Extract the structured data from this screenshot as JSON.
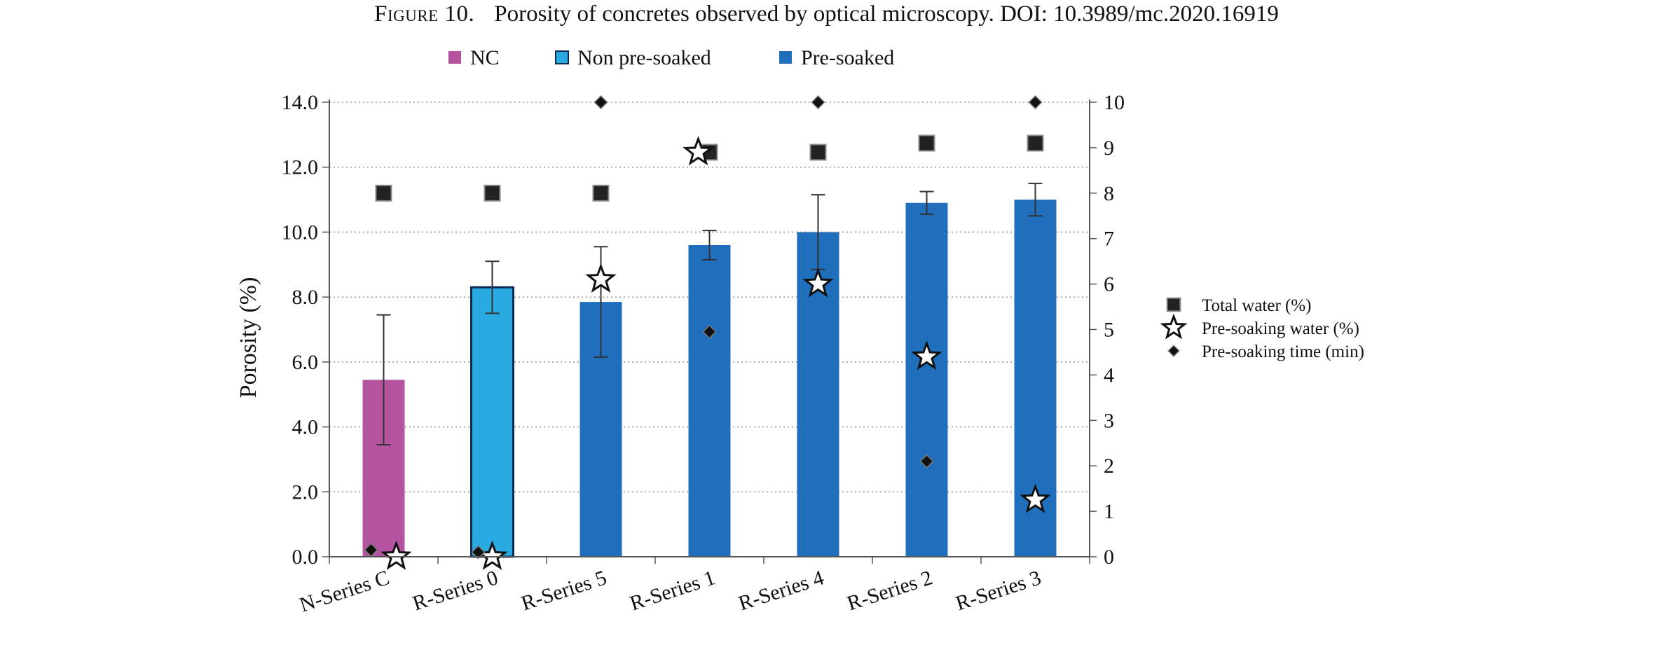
{
  "figure": {
    "number": "Figure 10.",
    "caption": "Porosity of concretes observed by optical microscopy. DOI: 10.3989/mc.2020.16919"
  },
  "chart_data": {
    "type": "bar",
    "title": "Porosity of concretes observed by optical microscopy. DOI: 10.3989/mc.2020.16919",
    "categories": [
      "N-Series C",
      "R-Series 0",
      "R-Series 5",
      "R-Series 1",
      "R-Series 4",
      "R-Series 2",
      "R-Series 3"
    ],
    "ylabel": "Porosity (%)",
    "ylim": [
      0,
      14
    ],
    "y_ticks": [
      "0.0",
      "2.0",
      "4.0",
      "6.0",
      "8.0",
      "10.0",
      "12.0",
      "14.0"
    ],
    "y2lim": [
      0,
      10
    ],
    "y2_ticks": [
      "0",
      "1",
      "2",
      "3",
      "4",
      "5",
      "6",
      "7",
      "8",
      "9",
      "10"
    ],
    "grid": "horizontal dotted",
    "bars": {
      "values": [
        5.45,
        8.3,
        7.85,
        9.6,
        10.0,
        10.9,
        11.0
      ],
      "error": [
        2.0,
        0.8,
        1.7,
        0.45,
        1.15,
        0.35,
        0.5
      ],
      "groups": [
        "NC",
        "Non pre-soaked",
        "Pre-soaked",
        "Pre-soaked",
        "Pre-soaked",
        "Pre-soaked",
        "Pre-soaked"
      ]
    },
    "bar_legend": [
      {
        "name": "NC",
        "color": "#b4539f"
      },
      {
        "name": "Non pre-soaked",
        "color": "#29abe2"
      },
      {
        "name": "Pre-soaked",
        "color": "#1f6fbd"
      }
    ],
    "series": [
      {
        "name": "Total water (%)",
        "axis": "right",
        "marker": "square",
        "values": [
          8.0,
          8.0,
          8.0,
          8.9,
          8.9,
          9.1,
          9.1
        ]
      },
      {
        "name": "Pre-soaking water (%)",
        "axis": "right",
        "marker": "star",
        "values": [
          0,
          0,
          6.1,
          8.9,
          6.0,
          4.4,
          1.25
        ]
      },
      {
        "name": "Pre-soaking time (min)",
        "axis": "right",
        "marker": "diamond",
        "values": [
          0.15,
          0.1,
          10,
          4.95,
          10,
          2.1,
          10
        ]
      }
    ],
    "legend_placement": "top (bars), right (markers)"
  }
}
